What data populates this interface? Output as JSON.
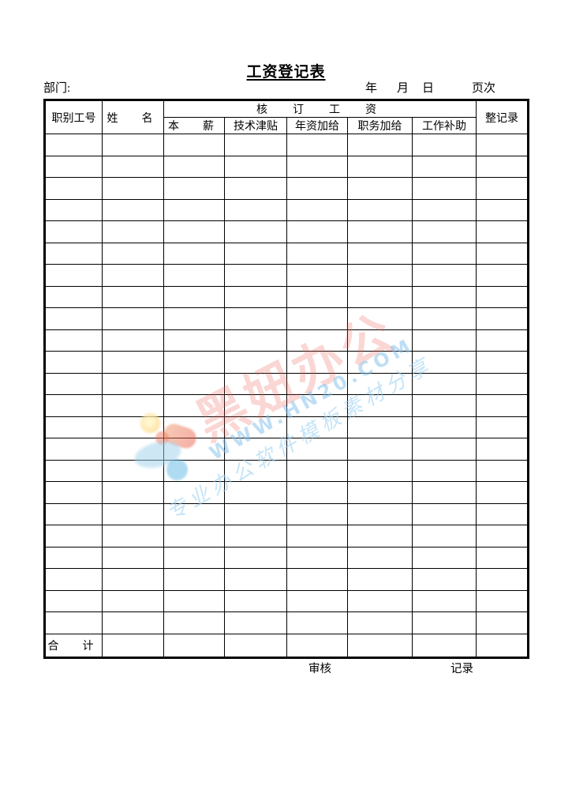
{
  "title": "工资登记表",
  "meta": {
    "department_label": "部门:",
    "year_label": "年",
    "month_label": "月",
    "day_label": "日",
    "page_label": "页次"
  },
  "table": {
    "col_job_number": "职别工号",
    "col_name": "姓　名",
    "group_header": "核　订　工　资",
    "sub_headers": [
      "本　薪",
      "技术津贴",
      "年资加给",
      "职务加给",
      "工作补助"
    ],
    "col_adjust_record": "整记录",
    "empty_row_count": 23,
    "column_count": 8,
    "total_label": "合　计"
  },
  "footer": {
    "review_label": "审核",
    "record_label": "记录"
  },
  "watermark": {
    "logo_icon": "color-blob-logo",
    "brand_text": "黑妞办公",
    "url_text": "WWW.HN20.COM",
    "slogan_text": "专业办公软件模板素材分享",
    "brand_color": "#e85a4a",
    "accent_blue": "#7fc0e8"
  }
}
